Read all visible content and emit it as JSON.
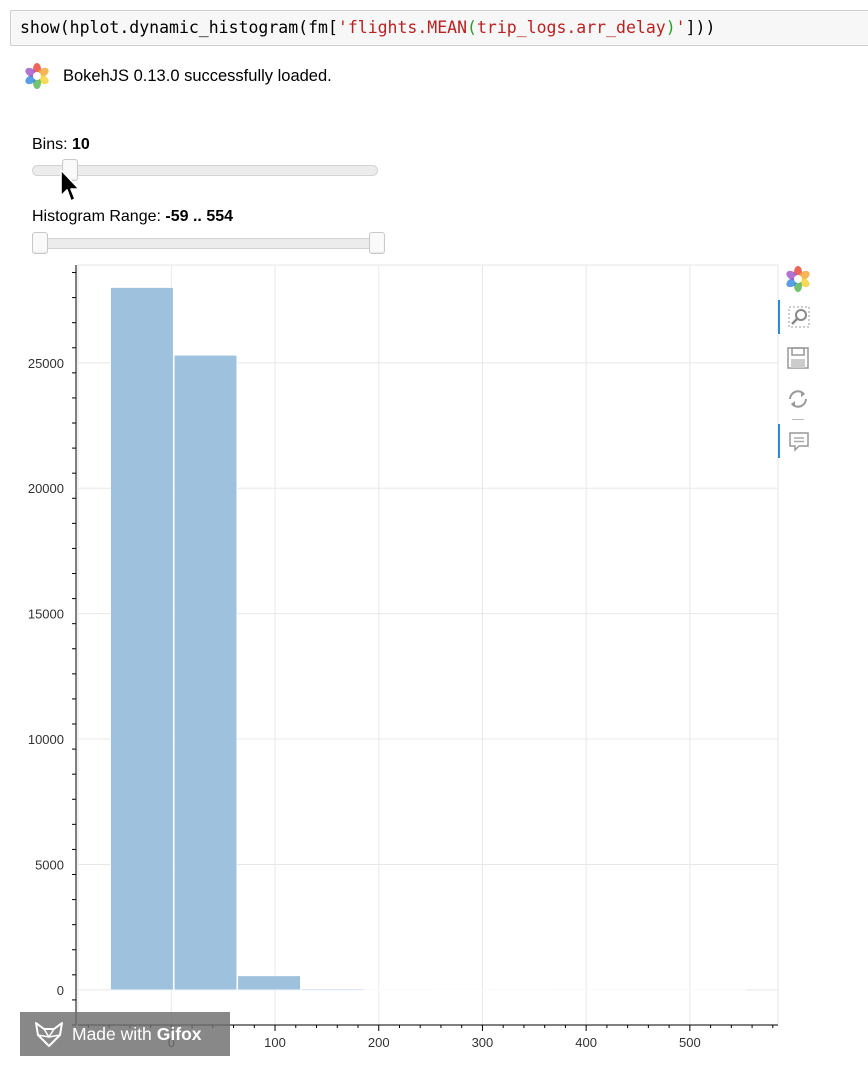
{
  "code_cell": {
    "tokens": [
      {
        "text": "show(hplot.dynamic_histogram(fm[",
        "kind": "plain"
      },
      {
        "text": "'flights.MEAN",
        "kind": "str"
      },
      {
        "text": "(",
        "kind": "paren"
      },
      {
        "text": "trip_logs.arr_delay",
        "kind": "str"
      },
      {
        "text": ")",
        "kind": "paren"
      },
      {
        "text": "'",
        "kind": "str"
      },
      {
        "text": "]))",
        "kind": "plain"
      }
    ]
  },
  "output": {
    "loaded_message": "BokehJS 0.13.0 successfully loaded.",
    "logo_icon": "bokeh-logo-icon"
  },
  "widgets": {
    "bins": {
      "label": "Bins:",
      "value": "10",
      "slider_fraction": 0.09
    },
    "range": {
      "label": "Histogram Range:",
      "value": "-59 .. 554",
      "start_fraction": 0.0,
      "end_fraction": 1.0
    }
  },
  "toolbar": {
    "tools": [
      {
        "name": "bokeh-logo-icon",
        "active": false
      },
      {
        "name": "box-zoom-icon",
        "active": true
      },
      {
        "name": "save-icon",
        "active": false
      },
      {
        "name": "reset-icon",
        "active": false
      },
      {
        "name": "hover-icon",
        "active": true
      }
    ]
  },
  "watermark": {
    "prefix": "Made with",
    "brand": "Gifox",
    "icon": "fox-icon"
  },
  "chart_data": {
    "type": "bar",
    "bar_color": "#9ec2de",
    "grid": true,
    "xlim": [
      -90,
      585
    ],
    "ylim": [
      -1400,
      28900
    ],
    "x_ticks": [
      0,
      100,
      200,
      300,
      400,
      500
    ],
    "y_ticks": [
      0,
      5000,
      10000,
      15000,
      20000,
      25000
    ],
    "bins": [
      {
        "x0": -59,
        "x1": 2.3,
        "count": 28000
      },
      {
        "x0": 2.3,
        "x1": 63.6,
        "count": 25300
      },
      {
        "x0": 63.6,
        "x1": 124.9,
        "count": 560
      },
      {
        "x0": 124.9,
        "x1": 186.2,
        "count": 40
      },
      {
        "x0": 186.2,
        "x1": 247.5,
        "count": 8
      },
      {
        "x0": 247.5,
        "x1": 308.8,
        "count": 4
      },
      {
        "x0": 308.8,
        "x1": 370.1,
        "count": 2
      },
      {
        "x0": 370.1,
        "x1": 431.4,
        "count": 1
      },
      {
        "x0": 431.4,
        "x1": 492.7,
        "count": 1
      },
      {
        "x0": 492.7,
        "x1": 554,
        "count": 1
      }
    ]
  }
}
